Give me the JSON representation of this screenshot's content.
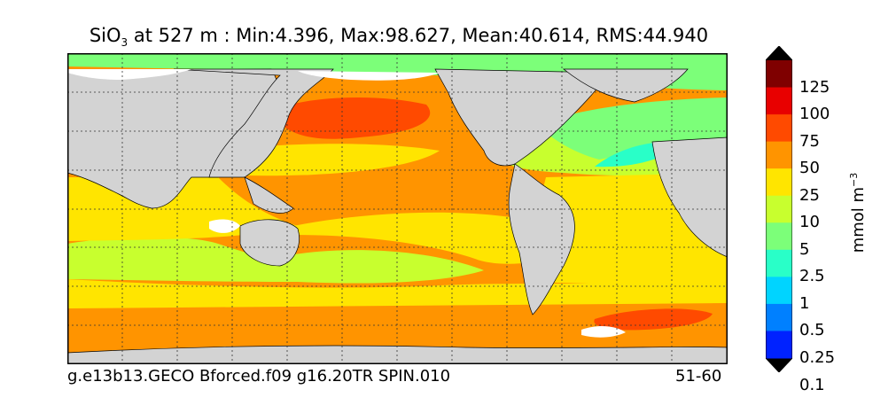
{
  "title": {
    "variable_base": "SiO",
    "variable_sub": "3",
    "rest": "at 527 m : Min:4.396, Max:98.627, Mean:40.614, RMS:44.940"
  },
  "footer": {
    "case_name": "g.e13b13.GECO Bforced.f09 g16.20TR SPIN.010",
    "years": "51-60"
  },
  "colorbar": {
    "units_base": "mmol m",
    "units_sup": "−3",
    "ticks": [
      "125",
      "100",
      "75",
      "50",
      "25",
      "10",
      "5",
      "2.5",
      "1",
      "0.5",
      "0.25",
      "0.1"
    ],
    "colors": [
      "#00007f",
      "#0000cd",
      "#0022ff",
      "#0080ff",
      "#00d4ff",
      "#29ffc8",
      "#7cff79",
      "#c8ff2e",
      "#ffe500",
      "#ff9400",
      "#ff4a00",
      "#e80000",
      "#7f0000"
    ]
  },
  "map": {
    "land_color": "#d3d3d3",
    "missing_color": "#ffffff",
    "gridlines": true
  }
}
